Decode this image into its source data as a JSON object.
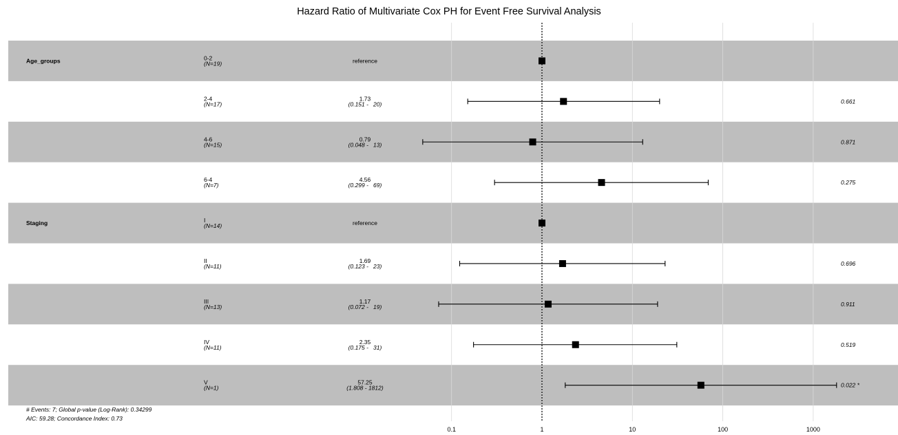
{
  "chart_data": {
    "type": "forest",
    "title": "Hazard Ratio of Multivariate Cox PH for Event Free Survival Analysis",
    "x_scale": "log",
    "xlim": [
      0.03,
      7000
    ],
    "x_ticks": [
      0.1,
      1,
      10,
      100,
      1000
    ],
    "x_tick_labels": [
      "0.1",
      "1",
      "10",
      "100",
      "1000"
    ],
    "reference_line": 1,
    "rows": [
      {
        "variable": "Age_groups",
        "level": "0-2",
        "n": "(N=19)",
        "estimate_label": "reference",
        "ci_label": "",
        "hr": 1,
        "lo": null,
        "hi": null,
        "p": "",
        "shaded": true
      },
      {
        "variable": "",
        "level": "2-4",
        "n": "(N=17)",
        "estimate_label": "1.73",
        "ci_label": "(0.151 -   20)",
        "hr": 1.73,
        "lo": 0.151,
        "hi": 20,
        "p": "0.661",
        "shaded": false
      },
      {
        "variable": "",
        "level": "4-6",
        "n": "(N=15)",
        "estimate_label": "0.79",
        "ci_label": "(0.048 -   13)",
        "hr": 0.79,
        "lo": 0.048,
        "hi": 13,
        "p": "0.871",
        "shaded": true
      },
      {
        "variable": "",
        "level": "6-4",
        "n": "(N=7)",
        "estimate_label": "4.56",
        "ci_label": "(0.299 -   69)",
        "hr": 4.56,
        "lo": 0.299,
        "hi": 69,
        "p": "0.275",
        "shaded": false
      },
      {
        "variable": "Staging",
        "level": "I",
        "n": "(N=14)",
        "estimate_label": "reference",
        "ci_label": "",
        "hr": 1,
        "lo": null,
        "hi": null,
        "p": "",
        "shaded": true
      },
      {
        "variable": "",
        "level": "II",
        "n": "(N=11)",
        "estimate_label": "1.69",
        "ci_label": "(0.123 -   23)",
        "hr": 1.69,
        "lo": 0.123,
        "hi": 23,
        "p": "0.696",
        "shaded": false
      },
      {
        "variable": "",
        "level": "III",
        "n": "(N=13)",
        "estimate_label": "1.17",
        "ci_label": "(0.072 -   19)",
        "hr": 1.17,
        "lo": 0.072,
        "hi": 19,
        "p": "0.911",
        "shaded": true
      },
      {
        "variable": "",
        "level": "IV",
        "n": "(N=11)",
        "estimate_label": "2.35",
        "ci_label": "(0.175 -   31)",
        "hr": 2.35,
        "lo": 0.175,
        "hi": 31,
        "p": "0.519",
        "shaded": false
      },
      {
        "variable": "",
        "level": "V",
        "n": "(N=1)",
        "estimate_label": "57.25",
        "ci_label": "(1.808 - 1812)",
        "hr": 57.25,
        "lo": 1.808,
        "hi": 1812,
        "p": "0.022 *",
        "shaded": true
      }
    ],
    "colors": {
      "shade": "#bebebe",
      "grid": "#d9d9d9",
      "mark": "#000000"
    },
    "footnote_line1": "# Events: 7; Global p-value (Log-Rank): 0.34299",
    "footnote_line2": "AIC: 59.28; Concordance Index: 0.73"
  }
}
